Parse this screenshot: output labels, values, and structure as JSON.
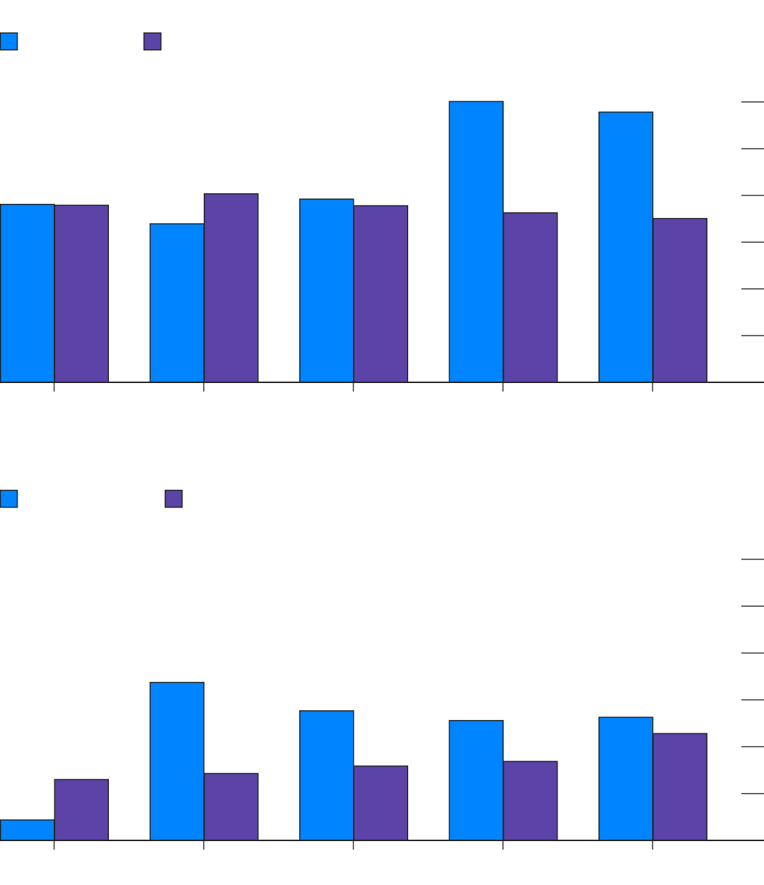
{
  "chart_data": [
    {
      "type": "bar",
      "title": "",
      "xlabel": "",
      "ylabel": "",
      "categories": [
        "",
        "",
        "",
        "",
        ""
      ],
      "ylim": [
        0,
        6.35
      ],
      "grid": false,
      "legend": "top-left",
      "series": [
        {
          "color": "#0084FF",
          "values": [
            4.03,
            3.59,
            4.15,
            6.36,
            6.12
          ]
        },
        {
          "color": "#5B43A8",
          "values": [
            4.01,
            4.27,
            4.0,
            3.84,
            3.71
          ]
        }
      ]
    },
    {
      "type": "bar",
      "title": "",
      "xlabel": "",
      "ylabel": "",
      "categories": [
        "",
        "",
        "",
        "",
        ""
      ],
      "ylim": [
        0,
        6.05
      ],
      "grid": false,
      "legend": "top-left",
      "series": [
        {
          "color": "#0084FF",
          "values": [
            0.44,
            3.4,
            2.79,
            2.58,
            2.65
          ]
        },
        {
          "color": "#5B43A8",
          "values": [
            1.31,
            1.44,
            1.6,
            1.7,
            2.3
          ]
        }
      ]
    }
  ]
}
